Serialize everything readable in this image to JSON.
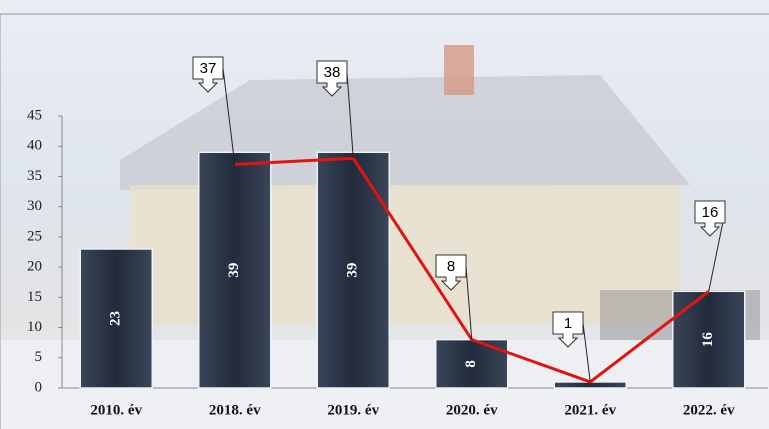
{
  "chart_data": {
    "type": "bar",
    "categories": [
      "2010. év",
      "2018. év",
      "2019. év",
      "2020. év",
      "2021. év",
      "2022. év"
    ],
    "series": [
      {
        "type": "bar",
        "color": "#283246",
        "values": [
          23,
          39,
          39,
          8,
          1,
          16
        ],
        "value_labels": [
          "23",
          "39",
          "39",
          "8",
          null,
          "16"
        ]
      },
      {
        "type": "line",
        "color": "#e3140f",
        "values": [
          null,
          37,
          38,
          8,
          1,
          16
        ]
      }
    ],
    "ylim": [
      0,
      45
    ],
    "yticks": [
      0,
      5,
      10,
      15,
      20,
      25,
      30,
      35,
      40,
      45
    ]
  }
}
